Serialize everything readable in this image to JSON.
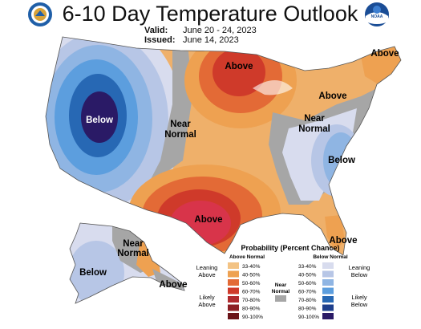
{
  "header": {
    "title": "6-10 Day Temperature Outlook",
    "valid_label": "Valid:",
    "valid_value": "June 20 - 24, 2023",
    "issued_label": "Issued:",
    "issued_value": "June 14, 2023"
  },
  "logos": {
    "left": "department-of-commerce-seal",
    "right": "noaa-logo",
    "right_text": "NOAA"
  },
  "regions": {
    "west_below": "Below",
    "central_near_1": "Near",
    "central_near_2": "Normal",
    "north_above": "Above",
    "northeast_above": "Above",
    "great_lakes_above": "Above",
    "ohio_near_1": "Near",
    "ohio_near_2": "Normal",
    "southeast_below": "Below",
    "texas_above": "Above",
    "florida_above": "Above",
    "alaska_near_1": "Near",
    "alaska_near_2": "Normal",
    "alaska_below": "Below",
    "alaska_above": "Above"
  },
  "legend": {
    "title": "Probability (Percent Chance)",
    "above_header": "Above Normal",
    "below_header": "Below Normal",
    "near_header_1": "Near",
    "near_header_2": "Normal",
    "leaning_above_1": "Leaning",
    "leaning_above_2": "Above",
    "likely_above_1": "Likely",
    "likely_above_2": "Above",
    "leaning_below_1": "Leaning",
    "leaning_below_2": "Below",
    "likely_below_1": "Likely",
    "likely_below_2": "Below",
    "ranges": [
      "33-40%",
      "40-50%",
      "50-60%",
      "60-70%",
      "70-80%",
      "80-90%",
      "90-100%"
    ],
    "above_colors": [
      "#f3c384",
      "#eea151",
      "#e36a36",
      "#cf3a2a",
      "#b02a2e",
      "#8d1f24",
      "#6a1318"
    ],
    "below_colors": [
      "#d8dcee",
      "#b7c6e6",
      "#8fb5e3",
      "#5c9ede",
      "#2768b4",
      "#1e3f8c",
      "#2a1a66"
    ],
    "near_color": "#a6a6a6"
  }
}
